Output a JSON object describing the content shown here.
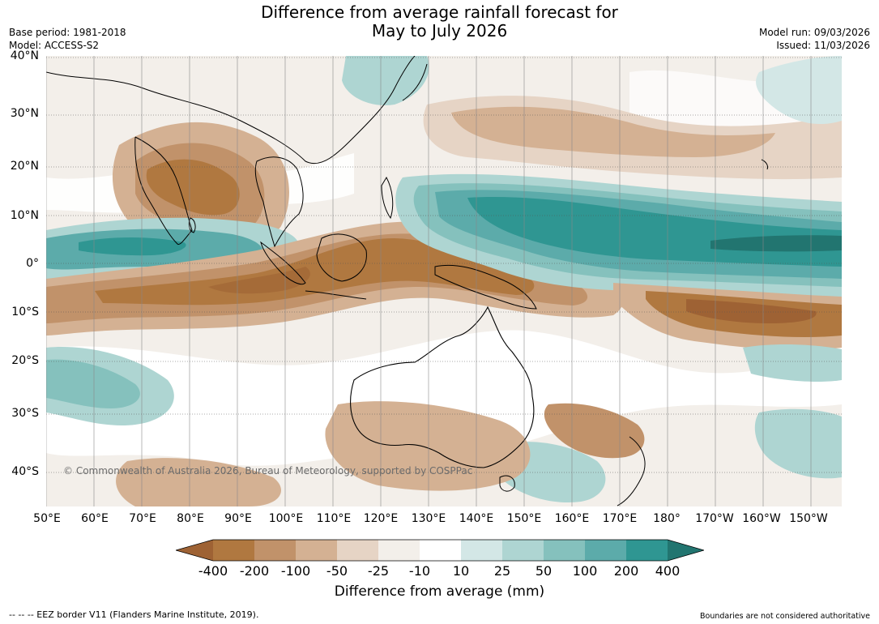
{
  "header": {
    "title_line1": "Difference from average rainfall forecast for",
    "title_line2": "May to July 2026",
    "base_period": "Base period: 1981-2018",
    "model": "Model: ACCESS-S2",
    "model_run": "Model run: 09/03/2026",
    "issued": "Issued: 11/03/2026"
  },
  "map": {
    "lat_labels": [
      "40°N",
      "30°N",
      "20°N",
      "10°N",
      "0°",
      "10°S",
      "20°S",
      "30°S",
      "40°S"
    ],
    "lon_labels": [
      "50°E",
      "60°E",
      "70°E",
      "80°E",
      "90°E",
      "100°E",
      "110°E",
      "120°E",
      "130°E",
      "140°E",
      "150°E",
      "160°E",
      "170°E",
      "180°",
      "170°W",
      "160°W",
      "150°W"
    ],
    "copyright": "© Commonwealth of Australia 2026, Bureau of Meteorology, supported by COSPPac"
  },
  "legend": {
    "title": "Difference from average (mm)",
    "tick_labels": [
      "-400",
      "-200",
      "-100",
      "-50",
      "-25",
      "-10",
      "10",
      "25",
      "50",
      "100",
      "200",
      "400"
    ],
    "colors": [
      "#9e6234",
      "#b07840",
      "#c1926a",
      "#d4b193",
      "#e6d4c5",
      "#f3efea",
      "#ffffff",
      "#d3e7e6",
      "#aed5d2",
      "#85c1bd",
      "#5cabaa",
      "#2f9692",
      "#227570"
    ]
  },
  "footer": {
    "eez_note": "--  --  -- EEZ border V11 (Flanders Marine Institute, 2019).",
    "disclaimer": "Boundaries are not considered authoritative"
  }
}
